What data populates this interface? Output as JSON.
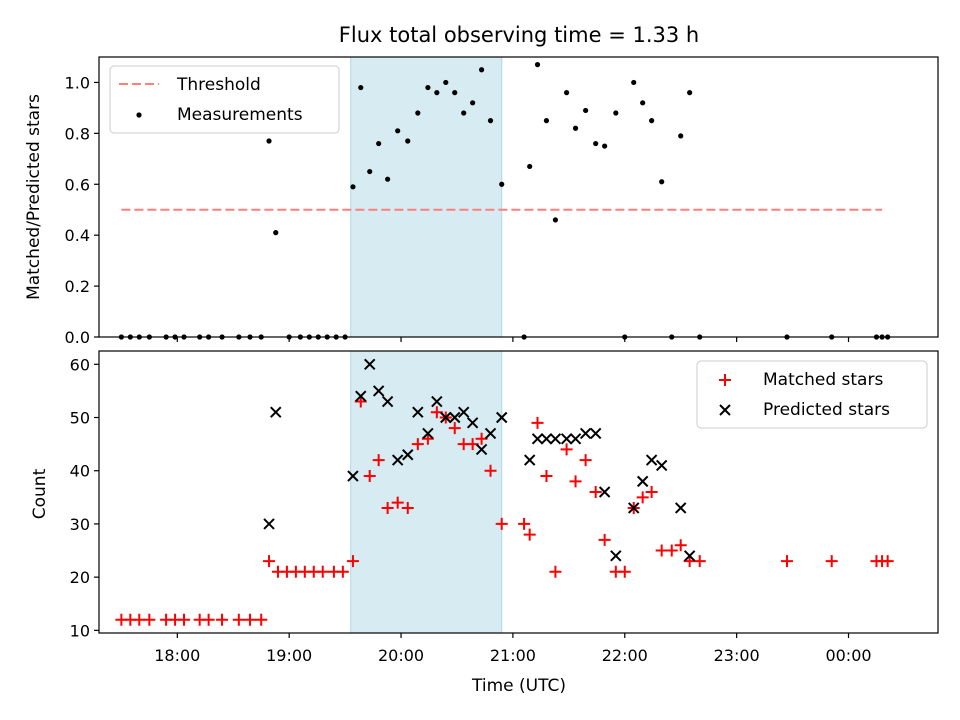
{
  "chart_data": [
    {
      "type": "scatter",
      "title": "Flux total observing time = 1.33 h",
      "xlabel": "",
      "ylabel": "Matched/Predicted stars",
      "xlim": [
        17.3,
        24.8
      ],
      "ylim": [
        0.0,
        1.1
      ],
      "yticks": [
        0.0,
        0.2,
        0.4,
        0.6,
        0.8,
        1.0
      ],
      "ytick_labels": [
        "0.0",
        "0.2",
        "0.4",
        "0.6",
        "0.8",
        "1.0"
      ],
      "highlight": [
        19.55,
        20.9
      ],
      "threshold": {
        "name": "Threshold",
        "value": 0.5,
        "x": [
          17.5,
          24.3
        ],
        "color": "#ff7f7f"
      },
      "legend": [
        "Threshold",
        "Measurements"
      ],
      "legend_position": "top-left",
      "series": [
        {
          "name": "Measurements",
          "color": "#000000",
          "points": [
            [
              17.5,
              0
            ],
            [
              17.58,
              0
            ],
            [
              17.66,
              0
            ],
            [
              17.75,
              0
            ],
            [
              17.9,
              0
            ],
            [
              17.98,
              0
            ],
            [
              18.06,
              0
            ],
            [
              18.2,
              0
            ],
            [
              18.28,
              0
            ],
            [
              18.4,
              0
            ],
            [
              18.55,
              0
            ],
            [
              18.65,
              0
            ],
            [
              18.75,
              0
            ],
            [
              18.82,
              0.77
            ],
            [
              18.88,
              0.41
            ],
            [
              19.0,
              0
            ],
            [
              19.1,
              0
            ],
            [
              19.18,
              0
            ],
            [
              19.26,
              0
            ],
            [
              19.34,
              0
            ],
            [
              19.42,
              0
            ],
            [
              19.5,
              0
            ],
            [
              19.57,
              0.59
            ],
            [
              19.64,
              0.98
            ],
            [
              19.72,
              0.65
            ],
            [
              19.8,
              0.76
            ],
            [
              19.88,
              0.62
            ],
            [
              19.97,
              0.81
            ],
            [
              20.06,
              0.77
            ],
            [
              20.15,
              0.88
            ],
            [
              20.24,
              0.98
            ],
            [
              20.32,
              0.96
            ],
            [
              20.4,
              1.0
            ],
            [
              20.48,
              0.96
            ],
            [
              20.56,
              0.88
            ],
            [
              20.64,
              0.92
            ],
            [
              20.72,
              1.05
            ],
            [
              20.8,
              0.85
            ],
            [
              20.9,
              0.6
            ],
            [
              21.1,
              0
            ],
            [
              21.15,
              0.67
            ],
            [
              21.22,
              1.07
            ],
            [
              21.3,
              0.85
            ],
            [
              21.38,
              0.46
            ],
            [
              21.48,
              0.96
            ],
            [
              21.56,
              0.82
            ],
            [
              21.65,
              0.89
            ],
            [
              21.74,
              0.76
            ],
            [
              21.82,
              0.75
            ],
            [
              21.92,
              0.88
            ],
            [
              22.0,
              0
            ],
            [
              22.08,
              1.0
            ],
            [
              22.16,
              0.92
            ],
            [
              22.24,
              0.85
            ],
            [
              22.33,
              0.61
            ],
            [
              22.42,
              0
            ],
            [
              22.5,
              0.79
            ],
            [
              22.58,
              0.96
            ],
            [
              22.67,
              0
            ],
            [
              23.45,
              0
            ],
            [
              23.85,
              0
            ],
            [
              24.25,
              0
            ],
            [
              24.3,
              0
            ],
            [
              24.35,
              0
            ]
          ]
        }
      ]
    },
    {
      "type": "scatter",
      "title": "",
      "xlabel": "Time (UTC)",
      "ylabel": "Count",
      "xlim": [
        17.3,
        24.8
      ],
      "ylim": [
        9.5,
        62.5
      ],
      "yticks": [
        10,
        20,
        30,
        40,
        50,
        60
      ],
      "ytick_labels": [
        "10",
        "20",
        "30",
        "40",
        "50",
        "60"
      ],
      "xticks": [
        18,
        19,
        20,
        21,
        22,
        23,
        24
      ],
      "xtick_labels": [
        "18:00",
        "19:00",
        "20:00",
        "21:00",
        "22:00",
        "23:00",
        "00:00"
      ],
      "highlight": [
        19.55,
        20.9
      ],
      "legend": [
        "Matched stars",
        "Predicted stars"
      ],
      "legend_position": "top-right",
      "series": [
        {
          "name": "Matched stars",
          "marker": "plus",
          "color": "#ff0000",
          "points": [
            [
              17.5,
              12
            ],
            [
              17.58,
              12
            ],
            [
              17.66,
              12
            ],
            [
              17.75,
              12
            ],
            [
              17.9,
              12
            ],
            [
              17.98,
              12
            ],
            [
              18.06,
              12
            ],
            [
              18.2,
              12
            ],
            [
              18.28,
              12
            ],
            [
              18.4,
              12
            ],
            [
              18.55,
              12
            ],
            [
              18.65,
              12
            ],
            [
              18.75,
              12
            ],
            [
              18.82,
              23
            ],
            [
              18.9,
              21
            ],
            [
              18.98,
              21
            ],
            [
              19.06,
              21
            ],
            [
              19.14,
              21
            ],
            [
              19.22,
              21
            ],
            [
              19.3,
              21
            ],
            [
              19.4,
              21
            ],
            [
              19.48,
              21
            ],
            [
              19.57,
              23
            ],
            [
              19.64,
              53
            ],
            [
              19.72,
              39
            ],
            [
              19.8,
              42
            ],
            [
              19.88,
              33
            ],
            [
              19.97,
              34
            ],
            [
              20.06,
              33
            ],
            [
              20.15,
              45
            ],
            [
              20.24,
              46
            ],
            [
              20.32,
              51
            ],
            [
              20.4,
              50
            ],
            [
              20.48,
              48
            ],
            [
              20.56,
              45
            ],
            [
              20.64,
              45
            ],
            [
              20.72,
              46
            ],
            [
              20.8,
              40
            ],
            [
              20.9,
              30
            ],
            [
              21.1,
              30
            ],
            [
              21.15,
              28
            ],
            [
              21.22,
              49
            ],
            [
              21.3,
              39
            ],
            [
              21.38,
              21
            ],
            [
              21.48,
              44
            ],
            [
              21.56,
              38
            ],
            [
              21.65,
              42
            ],
            [
              21.74,
              36
            ],
            [
              21.82,
              27
            ],
            [
              21.92,
              21
            ],
            [
              22.0,
              21
            ],
            [
              22.08,
              33
            ],
            [
              22.16,
              35
            ],
            [
              22.24,
              36
            ],
            [
              22.33,
              25
            ],
            [
              22.42,
              25
            ],
            [
              22.5,
              26
            ],
            [
              22.58,
              23
            ],
            [
              22.67,
              23
            ],
            [
              23.45,
              23
            ],
            [
              23.85,
              23
            ],
            [
              24.25,
              23
            ],
            [
              24.3,
              23
            ],
            [
              24.35,
              23
            ]
          ]
        },
        {
          "name": "Predicted stars",
          "marker": "x",
          "color": "#000000",
          "points": [
            [
              18.82,
              30
            ],
            [
              18.88,
              51
            ],
            [
              19.57,
              39
            ],
            [
              19.64,
              54
            ],
            [
              19.72,
              60
            ],
            [
              19.8,
              55
            ],
            [
              19.88,
              53
            ],
            [
              19.97,
              42
            ],
            [
              20.06,
              43
            ],
            [
              20.15,
              51
            ],
            [
              20.24,
              47
            ],
            [
              20.32,
              53
            ],
            [
              20.4,
              50
            ],
            [
              20.48,
              50
            ],
            [
              20.56,
              51
            ],
            [
              20.64,
              49
            ],
            [
              20.72,
              44
            ],
            [
              20.8,
              47
            ],
            [
              20.9,
              50
            ],
            [
              21.15,
              42
            ],
            [
              21.22,
              46
            ],
            [
              21.3,
              46
            ],
            [
              21.38,
              46
            ],
            [
              21.48,
              46
            ],
            [
              21.56,
              46
            ],
            [
              21.65,
              47
            ],
            [
              21.74,
              47
            ],
            [
              21.82,
              36
            ],
            [
              21.92,
              24
            ],
            [
              22.08,
              33
            ],
            [
              22.16,
              38
            ],
            [
              22.24,
              42
            ],
            [
              22.33,
              41
            ],
            [
              22.5,
              33
            ],
            [
              22.58,
              24
            ]
          ]
        }
      ]
    }
  ]
}
